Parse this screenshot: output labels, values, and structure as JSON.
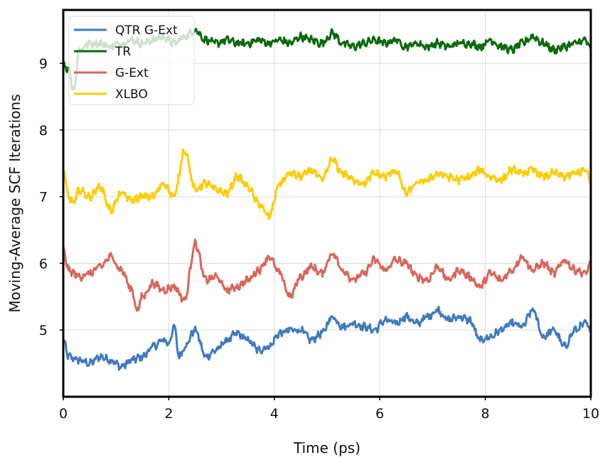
{
  "chart_data": {
    "type": "line",
    "title": "",
    "xlabel": "Time (ps)",
    "ylabel": "Moving-Average SCF Iterations",
    "xlim": [
      0,
      10
    ],
    "ylim": [
      4,
      9.8
    ],
    "xticks": [
      0,
      2,
      4,
      6,
      8,
      10
    ],
    "yticks": [
      5,
      6,
      7,
      8,
      9
    ],
    "grid": true,
    "legend_position": "top-left",
    "series": [
      {
        "name": "QTR G-Ext",
        "color": "#3f7bbf",
        "x": [
          0,
          0.1,
          0.3,
          0.5,
          0.7,
          0.9,
          1.1,
          1.3,
          1.5,
          1.7,
          1.9,
          2.0,
          2.1,
          2.2,
          2.3,
          2.5,
          2.7,
          2.9,
          3.1,
          3.3,
          3.5,
          3.7,
          3.9,
          4.1,
          4.3,
          4.5,
          4.7,
          4.9,
          5.1,
          5.3,
          5.5,
          5.7,
          5.9,
          6.1,
          6.3,
          6.5,
          6.7,
          6.9,
          7.1,
          7.3,
          7.5,
          7.7,
          7.9,
          8.1,
          8.3,
          8.5,
          8.7,
          8.9,
          9.1,
          9.3,
          9.5,
          9.7,
          9.9,
          10
        ],
        "values": [
          4.85,
          4.6,
          4.55,
          4.5,
          4.6,
          4.55,
          4.45,
          4.55,
          4.6,
          4.75,
          4.85,
          4.8,
          5.05,
          4.6,
          4.75,
          5.0,
          4.6,
          4.7,
          4.85,
          4.95,
          4.85,
          4.7,
          4.75,
          4.95,
          5.0,
          5.0,
          4.85,
          4.95,
          5.2,
          5.05,
          5.1,
          5.05,
          5.0,
          5.15,
          5.1,
          5.2,
          5.1,
          5.2,
          5.3,
          5.15,
          5.2,
          5.15,
          4.85,
          4.9,
          5.0,
          5.1,
          5.05,
          5.3,
          4.9,
          5.0,
          4.75,
          5.0,
          5.1,
          5.0
        ]
      },
      {
        "name": "TR",
        "color": "#0b6a0b",
        "x": [
          0,
          0.1,
          0.2,
          0.3,
          0.5,
          0.7,
          0.9,
          1.1,
          1.3,
          1.5,
          1.7,
          1.9,
          2.1,
          2.3,
          2.5,
          2.7,
          2.9,
          3.1,
          3.3,
          3.5,
          3.7,
          3.9,
          4.1,
          4.3,
          4.5,
          4.7,
          4.9,
          5.1,
          5.3,
          5.5,
          5.7,
          5.9,
          6.1,
          6.3,
          6.5,
          6.7,
          6.9,
          7.1,
          7.3,
          7.5,
          7.7,
          7.9,
          8.1,
          8.3,
          8.5,
          8.7,
          8.9,
          9.1,
          9.3,
          9.5,
          9.7,
          9.9,
          10
        ],
        "values": [
          9.0,
          8.9,
          8.6,
          9.2,
          9.3,
          9.3,
          9.25,
          9.3,
          9.35,
          9.3,
          9.35,
          9.4,
          9.3,
          9.4,
          9.5,
          9.35,
          9.3,
          9.35,
          9.3,
          9.3,
          9.35,
          9.3,
          9.35,
          9.3,
          9.4,
          9.35,
          9.3,
          9.45,
          9.3,
          9.25,
          9.3,
          9.35,
          9.3,
          9.35,
          9.25,
          9.3,
          9.25,
          9.3,
          9.25,
          9.3,
          9.3,
          9.25,
          9.35,
          9.25,
          9.2,
          9.3,
          9.4,
          9.3,
          9.2,
          9.25,
          9.3,
          9.35,
          9.2
        ]
      },
      {
        "name": "G-Ext",
        "color": "#d9665b",
        "x": [
          0,
          0.1,
          0.2,
          0.3,
          0.5,
          0.7,
          0.9,
          1.1,
          1.3,
          1.4,
          1.5,
          1.7,
          1.9,
          2.1,
          2.3,
          2.5,
          2.7,
          2.9,
          3.1,
          3.3,
          3.5,
          3.7,
          3.9,
          4.1,
          4.3,
          4.5,
          4.7,
          4.9,
          5.1,
          5.3,
          5.5,
          5.7,
          5.9,
          6.1,
          6.3,
          6.5,
          6.7,
          6.9,
          7.1,
          7.3,
          7.5,
          7.7,
          7.9,
          8.1,
          8.3,
          8.5,
          8.7,
          8.9,
          9.1,
          9.3,
          9.5,
          9.7,
          9.9,
          10
        ],
        "values": [
          6.2,
          5.9,
          5.85,
          5.8,
          5.85,
          5.95,
          6.1,
          5.9,
          5.6,
          5.3,
          5.5,
          5.7,
          5.6,
          5.65,
          5.45,
          6.3,
          5.75,
          5.8,
          5.6,
          5.65,
          5.75,
          5.9,
          6.1,
          5.85,
          5.5,
          5.8,
          5.95,
          5.85,
          6.15,
          5.9,
          5.75,
          5.85,
          6.05,
          5.9,
          6.05,
          6.0,
          5.8,
          5.75,
          5.95,
          5.75,
          5.9,
          5.8,
          5.65,
          5.85,
          5.75,
          5.9,
          6.1,
          5.9,
          6.0,
          5.85,
          6.05,
          5.9,
          5.85,
          6.0
        ]
      },
      {
        "name": "XLBO",
        "color": "#ffcc00",
        "x": [
          0,
          0.1,
          0.2,
          0.3,
          0.5,
          0.7,
          0.9,
          1.1,
          1.3,
          1.5,
          1.7,
          1.9,
          2.1,
          2.3,
          2.5,
          2.7,
          2.9,
          3.1,
          3.3,
          3.5,
          3.7,
          3.9,
          4.1,
          4.3,
          4.5,
          4.7,
          4.9,
          5.1,
          5.3,
          5.5,
          5.7,
          5.9,
          6.1,
          6.3,
          6.5,
          6.7,
          6.9,
          7.1,
          7.3,
          7.5,
          7.7,
          7.9,
          8.1,
          8.3,
          8.5,
          8.7,
          8.9,
          9.1,
          9.3,
          9.5,
          9.7,
          9.9,
          10
        ],
        "values": [
          7.4,
          7.0,
          6.9,
          7.1,
          7.0,
          7.15,
          6.8,
          7.05,
          6.95,
          7.0,
          7.0,
          7.2,
          7.0,
          7.7,
          7.1,
          7.2,
          7.1,
          7.05,
          7.3,
          7.15,
          6.9,
          6.7,
          7.2,
          7.35,
          7.3,
          7.4,
          7.25,
          7.55,
          7.35,
          7.25,
          7.2,
          7.35,
          7.3,
          7.4,
          7.05,
          7.2,
          7.25,
          7.35,
          7.3,
          7.25,
          7.3,
          7.4,
          7.3,
          7.25,
          7.4,
          7.35,
          7.4,
          7.3,
          7.35,
          7.3,
          7.35,
          7.4,
          7.2
        ]
      }
    ]
  }
}
